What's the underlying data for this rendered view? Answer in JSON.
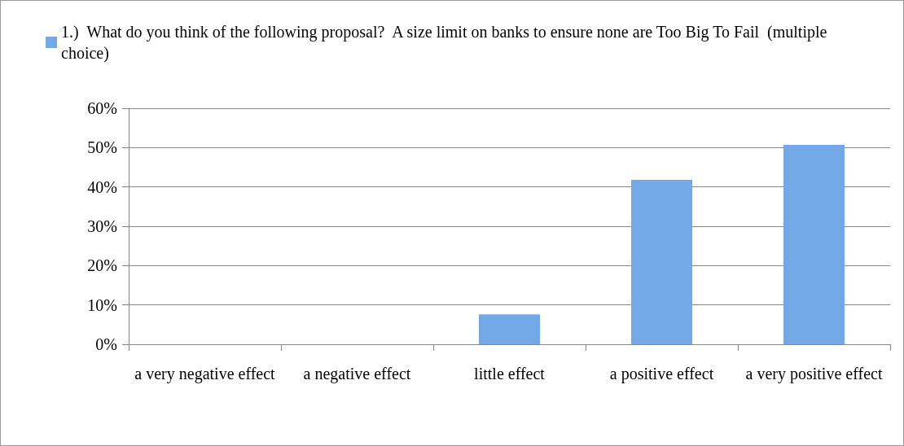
{
  "chart_data": {
    "type": "bar",
    "categories": [
      "a very negative effect",
      "a negative effect",
      "little effect",
      "a positive effect",
      "a very positive effect"
    ],
    "series": [
      {
        "name": "1.)  What do you think of the following proposal?  A size limit on banks to ensure none are Too Big To Fail  (multiple choice)",
        "color": "#72a8e6",
        "values": [
          0,
          0,
          7.6,
          41.8,
          50.7
        ]
      }
    ],
    "ylim": [
      0,
      60
    ],
    "yticks": [
      {
        "value": 0,
        "label": "0%"
      },
      {
        "value": 10,
        "label": "10%"
      },
      {
        "value": 20,
        "label": "20%"
      },
      {
        "value": 30,
        "label": "30%"
      },
      {
        "value": 40,
        "label": "40%"
      },
      {
        "value": 50,
        "label": "50%"
      },
      {
        "value": 60,
        "label": "60%"
      }
    ],
    "grid": "y",
    "legend": "top left"
  }
}
